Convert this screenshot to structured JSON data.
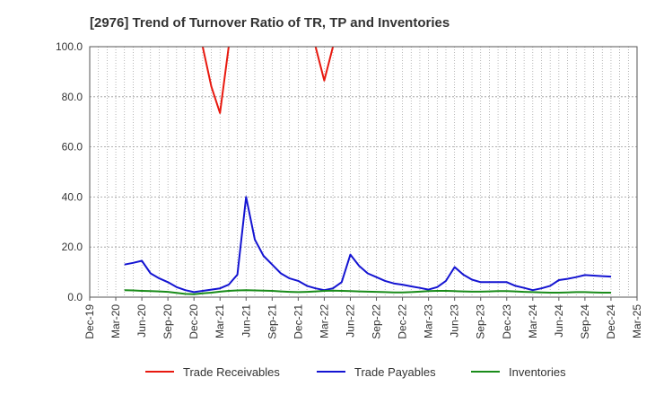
{
  "chart_data": {
    "type": "line",
    "title": "[2976]  Trend of Turnover Ratio of TR, TP and Inventories",
    "xlabel": "",
    "ylabel": "",
    "ylim": [
      0,
      100
    ],
    "y_ticks": [
      "0.0",
      "20.0",
      "40.0",
      "60.0",
      "80.0",
      "100.0"
    ],
    "x_ticks": [
      "Dec-19",
      "Mar-20",
      "Jun-20",
      "Sep-20",
      "Dec-20",
      "Mar-21",
      "Jun-21",
      "Sep-21",
      "Dec-21",
      "Mar-22",
      "Jun-22",
      "Sep-22",
      "Dec-22",
      "Mar-23",
      "Jun-23",
      "Sep-23",
      "Dec-23",
      "Mar-24",
      "Jun-24",
      "Sep-24",
      "Dec-24",
      "Mar-25"
    ],
    "grid": true,
    "legend_position": "bottom",
    "series": [
      {
        "name": "Trade Receivables",
        "color": "#e8190f",
        "points": [
          [
            "Jan-21",
            100
          ],
          [
            "Feb-21",
            84.0
          ],
          [
            "Mar-21",
            73.5
          ],
          [
            "Apr-21",
            100
          ]
        ]
      },
      {
        "name": "Trade Receivables",
        "color": "#e8190f",
        "points": [
          [
            "Feb-22",
            100
          ],
          [
            "Mar-22",
            86.5
          ],
          [
            "Apr-22",
            100
          ]
        ]
      },
      {
        "name": "Trade Payables",
        "color": "#1414d2",
        "points": [
          [
            "Apr-20",
            13.0
          ],
          [
            "May-20",
            13.7
          ],
          [
            "Jun-20",
            14.5
          ],
          [
            "Jul-20",
            9.5
          ],
          [
            "Aug-20",
            7.5
          ],
          [
            "Sep-20",
            6.0
          ],
          [
            "Oct-20",
            4.0
          ],
          [
            "Nov-20",
            2.8
          ],
          [
            "Dec-20",
            2.0
          ],
          [
            "Jan-21",
            2.5
          ],
          [
            "Feb-21",
            3.0
          ],
          [
            "Mar-21",
            3.5
          ],
          [
            "Apr-21",
            5.0
          ],
          [
            "May-21",
            9.0
          ],
          [
            "Jun-21",
            40.0
          ],
          [
            "Jul-21",
            23.0
          ],
          [
            "Aug-21",
            16.5
          ],
          [
            "Sep-21",
            13.0
          ],
          [
            "Oct-21",
            9.5
          ],
          [
            "Nov-21",
            7.5
          ],
          [
            "Dec-21",
            6.5
          ],
          [
            "Jan-22",
            4.5
          ],
          [
            "Feb-22",
            3.5
          ],
          [
            "Mar-22",
            2.8
          ],
          [
            "Apr-22",
            3.5
          ],
          [
            "May-22",
            6.0
          ],
          [
            "Jun-22",
            17.0
          ],
          [
            "Jul-22",
            12.5
          ],
          [
            "Aug-22",
            9.5
          ],
          [
            "Sep-22",
            8.0
          ],
          [
            "Oct-22",
            6.5
          ],
          [
            "Nov-22",
            5.5
          ],
          [
            "Dec-22",
            5.0
          ],
          [
            "Jan-23",
            4.3
          ],
          [
            "Feb-23",
            3.7
          ],
          [
            "Mar-23",
            3.0
          ],
          [
            "Apr-23",
            4.0
          ],
          [
            "May-23",
            6.5
          ],
          [
            "Jun-23",
            12.0
          ],
          [
            "Jul-23",
            9.0
          ],
          [
            "Aug-23",
            7.0
          ],
          [
            "Sep-23",
            6.0
          ],
          [
            "Oct-23",
            6.0
          ],
          [
            "Nov-23",
            6.0
          ],
          [
            "Dec-23",
            6.0
          ],
          [
            "Jan-24",
            4.5
          ],
          [
            "Feb-24",
            3.7
          ],
          [
            "Mar-24",
            2.8
          ],
          [
            "Apr-24",
            3.5
          ],
          [
            "May-24",
            4.5
          ],
          [
            "Jun-24",
            6.8
          ],
          [
            "Jul-24",
            7.3
          ],
          [
            "Aug-24",
            8.0
          ],
          [
            "Sep-24",
            8.8
          ],
          [
            "Oct-24",
            8.6
          ],
          [
            "Nov-24",
            8.4
          ],
          [
            "Dec-24",
            8.2
          ]
        ]
      },
      {
        "name": "Inventories",
        "color": "#1a8c1a",
        "points": [
          [
            "Apr-20",
            2.8
          ],
          [
            "May-20",
            2.7
          ],
          [
            "Jun-20",
            2.5
          ],
          [
            "Jul-20",
            2.4
          ],
          [
            "Aug-20",
            2.3
          ],
          [
            "Sep-20",
            2.1
          ],
          [
            "Oct-20",
            1.7
          ],
          [
            "Nov-20",
            1.3
          ],
          [
            "Dec-20",
            1.2
          ],
          [
            "Jan-21",
            1.5
          ],
          [
            "Feb-21",
            1.8
          ],
          [
            "Mar-21",
            2.2
          ],
          [
            "Apr-21",
            2.5
          ],
          [
            "May-21",
            2.7
          ],
          [
            "Jun-21",
            2.8
          ],
          [
            "Jul-21",
            2.7
          ],
          [
            "Aug-21",
            2.6
          ],
          [
            "Sep-21",
            2.5
          ],
          [
            "Oct-21",
            2.3
          ],
          [
            "Nov-21",
            2.1
          ],
          [
            "Dec-21",
            2.0
          ],
          [
            "Jan-22",
            2.1
          ],
          [
            "Feb-22",
            2.3
          ],
          [
            "Mar-22",
            2.5
          ],
          [
            "Apr-22",
            2.6
          ],
          [
            "May-22",
            2.5
          ],
          [
            "Jun-22",
            2.4
          ],
          [
            "Jul-22",
            2.3
          ],
          [
            "Aug-22",
            2.2
          ],
          [
            "Sep-22",
            2.1
          ],
          [
            "Oct-22",
            2.0
          ],
          [
            "Nov-22",
            1.9
          ],
          [
            "Dec-22",
            1.9
          ],
          [
            "Jan-23",
            2.0
          ],
          [
            "Feb-23",
            2.2
          ],
          [
            "Mar-23",
            2.4
          ],
          [
            "Apr-23",
            2.5
          ],
          [
            "May-23",
            2.5
          ],
          [
            "Jun-23",
            2.4
          ],
          [
            "Jul-23",
            2.3
          ],
          [
            "Aug-23",
            2.2
          ],
          [
            "Sep-23",
            2.2
          ],
          [
            "Oct-23",
            2.3
          ],
          [
            "Nov-23",
            2.4
          ],
          [
            "Dec-23",
            2.4
          ],
          [
            "Jan-24",
            2.3
          ],
          [
            "Feb-24",
            2.1
          ],
          [
            "Mar-24",
            2.0
          ],
          [
            "Apr-24",
            1.9
          ],
          [
            "May-24",
            1.8
          ],
          [
            "Jun-24",
            1.8
          ],
          [
            "Jul-24",
            1.9
          ],
          [
            "Aug-24",
            2.0
          ],
          [
            "Sep-24",
            2.0
          ],
          [
            "Oct-24",
            1.9
          ],
          [
            "Nov-24",
            1.8
          ],
          [
            "Dec-24",
            1.8
          ]
        ]
      }
    ],
    "legend": [
      {
        "label": "Trade Receivables",
        "color": "#e8190f"
      },
      {
        "label": "Trade Payables",
        "color": "#1414d2"
      },
      {
        "label": "Inventories",
        "color": "#1a8c1a"
      }
    ]
  }
}
